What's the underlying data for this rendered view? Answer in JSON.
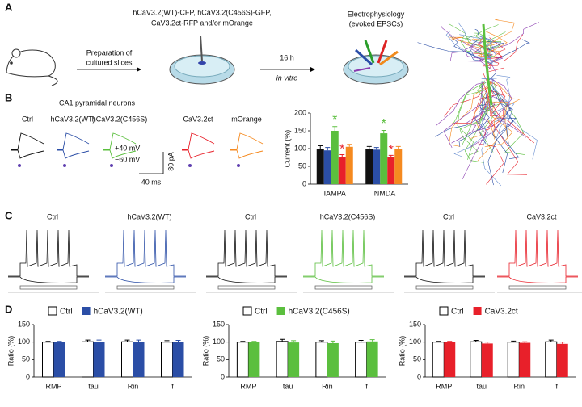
{
  "panels": {
    "a": "A",
    "b": "B",
    "c": "C",
    "d": "D"
  },
  "schematic": {
    "constructs": [
      "hCaV3.2(WT)-CFP, hCaV3.2(C456S)-GFP,",
      "CaV3.2ct-RFP and/or mOrange"
    ],
    "step1": [
      "Preparation of",
      "cultured slices"
    ],
    "step2": [
      "16 h",
      "in vitro"
    ],
    "step3": [
      "Electrophysiology",
      "(evoked EPSCs)"
    ]
  },
  "traces_b": {
    "title": "CA1 pyramidal neurons",
    "holding": [
      "+40 mV",
      "−60 mV"
    ],
    "scale": [
      "80 pA",
      "40 ms"
    ]
  },
  "traces_c": {
    "labels": [
      "Ctrl",
      "hCaV3.2(WT)",
      "Ctrl",
      "hCaV3.2(C456S)",
      "Ctrl",
      "CaV3.2ct"
    ]
  },
  "chart_data": [
    {
      "type": "bar",
      "ylabel": "Current (%)",
      "categories": [
        "IAMPA",
        "INMDA"
      ],
      "ylim": [
        0,
        200
      ],
      "yticks": [
        0,
        50,
        100,
        150,
        200
      ],
      "series": [
        {
          "name": "Ctrl",
          "color": "#111111",
          "values": [
            100,
            100
          ],
          "errors": [
            8,
            6
          ]
        },
        {
          "name": "hCaV3.2(WT)",
          "color": "#2b4ea6",
          "values": [
            95,
            97
          ],
          "errors": [
            8,
            6
          ]
        },
        {
          "name": "hCaV3.2(C456S)",
          "color": "#5bbf3e",
          "values": [
            150,
            143
          ],
          "errors": [
            12,
            8
          ]
        },
        {
          "name": "CaV3.2ct",
          "color": "#e8202a",
          "values": [
            75,
            75
          ],
          "errors": [
            8,
            6
          ],
          "annotation": "*"
        },
        {
          "name": "mOrange",
          "color": "#f58a20",
          "values": [
            105,
            100
          ],
          "errors": [
            7,
            6
          ]
        }
      ],
      "annotations": [
        "*",
        "*"
      ]
    },
    {
      "type": "bar",
      "ylabel": "Ratio (%)",
      "categories": [
        "RMP",
        "tau",
        "Rin",
        "f"
      ],
      "ylim": [
        0,
        150
      ],
      "yticks": [
        0,
        50,
        100,
        150
      ],
      "legend": "top",
      "series": [
        {
          "name": "Ctrl",
          "color": "#ffffff",
          "values": [
            100,
            101,
            101,
            100
          ],
          "errors": [
            2,
            5,
            5,
            4
          ]
        },
        {
          "name": "hCaV3.2(WT)",
          "color": "#2b4ea6",
          "values": [
            100,
            101,
            100,
            101
          ],
          "errors": [
            2,
            5,
            6,
            4
          ]
        }
      ]
    },
    {
      "type": "bar",
      "ylabel": "Ratio (%)",
      "categories": [
        "RMP",
        "tau",
        "Rin",
        "f"
      ],
      "ylim": [
        0,
        150
      ],
      "yticks": [
        0,
        50,
        100,
        150
      ],
      "legend": "top",
      "series": [
        {
          "name": "Ctrl",
          "color": "#ffffff",
          "values": [
            100,
            102,
            100,
            100
          ],
          "errors": [
            2,
            6,
            4,
            5
          ]
        },
        {
          "name": "hCaV3.2(C456S)",
          "color": "#5bbf3e",
          "values": [
            100,
            99,
            97,
            102
          ],
          "errors": [
            2,
            5,
            6,
            5
          ]
        }
      ]
    },
    {
      "type": "bar",
      "ylabel": "Ratio (%)",
      "categories": [
        "RMP",
        "tau",
        "Rin",
        "f"
      ],
      "ylim": [
        0,
        150
      ],
      "yticks": [
        0,
        50,
        100,
        150
      ],
      "legend": "top",
      "series": [
        {
          "name": "Ctrl",
          "color": "#ffffff",
          "values": [
            100,
            101,
            100,
            101
          ],
          "errors": [
            2,
            4,
            3,
            5
          ]
        },
        {
          "name": "CaV3.2ct",
          "color": "#e8202a",
          "values": [
            100,
            96,
            98,
            95
          ],
          "errors": [
            2,
            4,
            3,
            5
          ]
        }
      ]
    }
  ]
}
